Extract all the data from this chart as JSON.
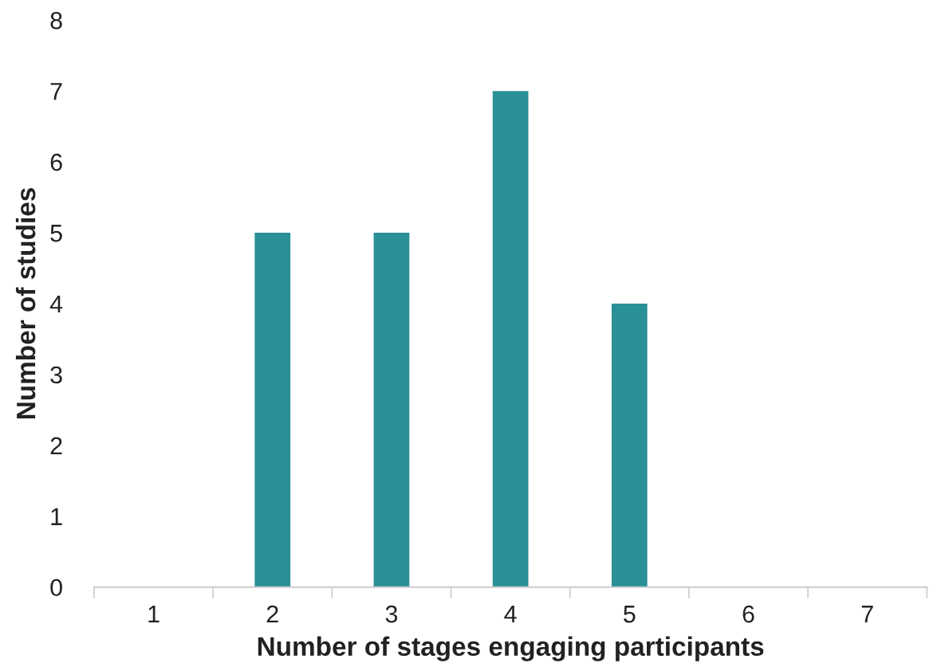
{
  "chart_data": {
    "type": "bar",
    "xlabel": "Number of stages engaging participants",
    "ylabel": "Number of studies",
    "categories": [
      "1",
      "2",
      "3",
      "4",
      "5",
      "6",
      "7"
    ],
    "values": [
      0,
      5,
      5,
      7,
      4,
      0,
      0
    ],
    "color": "#2a9097",
    "ylim": [
      0,
      8
    ],
    "yticks": [
      0,
      1,
      2,
      3,
      4,
      5,
      6,
      7,
      8
    ],
    "grid": false
  }
}
